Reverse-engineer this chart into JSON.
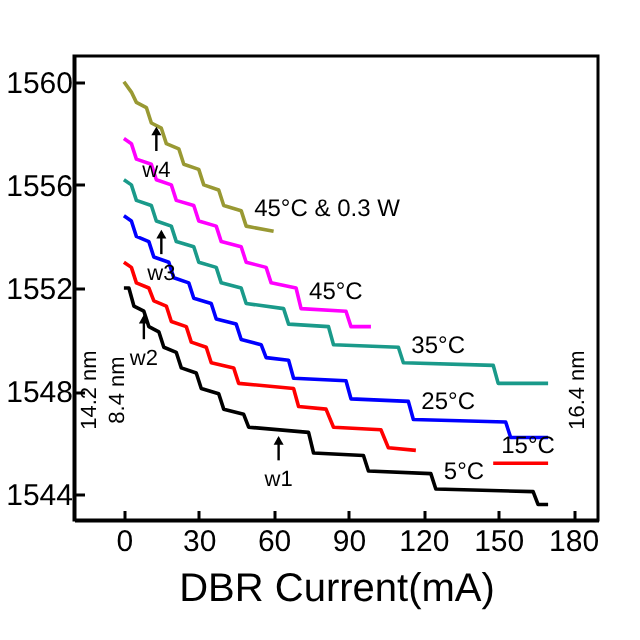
{
  "chart_data": {
    "type": "line",
    "xlabel": "DBR Current(mA)",
    "xlim": [
      -20,
      190
    ],
    "ylim": [
      1543,
      1561
    ],
    "xticks": [
      0,
      30,
      60,
      90,
      120,
      150,
      180
    ],
    "yticks": [
      1544,
      1548,
      1552,
      1556,
      1560
    ],
    "grid": false,
    "line_style": "solid",
    "marker": "none",
    "series": [
      {
        "name": "5°C",
        "color": "#000000",
        "x": [
          0,
          2,
          4,
          8,
          10,
          14,
          16,
          21,
          23,
          29,
          31,
          38,
          40,
          48,
          50,
          74,
          76,
          96,
          98,
          123,
          125,
          164,
          166,
          170
        ],
        "values": [
          1552.0,
          1552.0,
          1551.3,
          1551.1,
          1550.5,
          1550.3,
          1549.7,
          1549.5,
          1548.9,
          1548.7,
          1548.1,
          1547.9,
          1547.3,
          1547.1,
          1546.6,
          1546.4,
          1545.6,
          1545.5,
          1544.9,
          1544.8,
          1544.2,
          1544.1,
          1543.6,
          1543.6
        ]
      },
      {
        "name": "15°C",
        "color": "#ff0000",
        "x": [
          0,
          3,
          5,
          10,
          12,
          17,
          19,
          25,
          27,
          33,
          35,
          44,
          46,
          68,
          70,
          81,
          84,
          103,
          106,
          117,
          130,
          148,
          170
        ],
        "values": [
          1553.0,
          1552.8,
          1552.2,
          1552.0,
          1551.5,
          1551.3,
          1550.7,
          1550.5,
          1549.9,
          1549.7,
          1549.1,
          1548.9,
          1548.3,
          1548.1,
          1547.4,
          1547.3,
          1546.6,
          1546.5,
          1545.8,
          1545.7,
          null,
          1545.2,
          1545.2
        ]
      },
      {
        "name": "25°C",
        "color": "#0000ff",
        "x": [
          0,
          3,
          5,
          10,
          12,
          18,
          20,
          26,
          28,
          35,
          37,
          45,
          47,
          55,
          57,
          66,
          68,
          89,
          91,
          114,
          116,
          153,
          155,
          170
        ],
        "values": [
          1554.8,
          1554.6,
          1554.0,
          1553.8,
          1553.2,
          1553.0,
          1552.4,
          1552.2,
          1551.6,
          1551.4,
          1550.8,
          1550.6,
          1550.0,
          1549.8,
          1549.3,
          1549.2,
          1548.5,
          1548.4,
          1547.7,
          1547.6,
          1546.9,
          1546.8,
          1546.2,
          1546.2
        ]
      },
      {
        "name": "35°C",
        "color": "#1a9a8a",
        "x": [
          0,
          3,
          5,
          11,
          13,
          19,
          21,
          28,
          30,
          37,
          39,
          47,
          49,
          64,
          66,
          82,
          84,
          110,
          112,
          148,
          150,
          170
        ],
        "values": [
          1556.2,
          1556.0,
          1555.4,
          1555.2,
          1554.6,
          1554.4,
          1553.8,
          1553.6,
          1553.0,
          1552.8,
          1552.2,
          1552.0,
          1551.4,
          1551.2,
          1550.6,
          1550.5,
          1549.8,
          1549.7,
          1549.1,
          1549.0,
          1548.3,
          1548.3
        ]
      },
      {
        "name": "45°C",
        "color": "#ff00ff",
        "x": [
          0,
          3,
          5,
          11,
          13,
          19,
          21,
          28,
          30,
          37,
          39,
          47,
          49,
          57,
          59,
          69,
          71,
          89,
          91,
          99
        ],
        "values": [
          1557.8,
          1557.6,
          1557.0,
          1556.8,
          1556.2,
          1556.0,
          1555.4,
          1555.2,
          1554.6,
          1554.4,
          1553.8,
          1553.6,
          1553.0,
          1552.8,
          1552.2,
          1552.0,
          1551.2,
          1551.1,
          1550.5,
          1550.5
        ]
      },
      {
        "name": "45°C & 0.3 W",
        "color": "#999933",
        "x": [
          0,
          3,
          5,
          9,
          11,
          15,
          17,
          22,
          24,
          30,
          32,
          38,
          40,
          47,
          49,
          60
        ],
        "values": [
          1560.0,
          1559.6,
          1559.2,
          1559.0,
          1558.4,
          1558.2,
          1557.6,
          1557.4,
          1556.8,
          1556.6,
          1556.0,
          1555.8,
          1555.2,
          1555.0,
          1554.4,
          1554.2
        ]
      }
    ],
    "annotations": [
      {
        "text": "w1",
        "x": 62,
        "y": 1546.4
      },
      {
        "text": "w2",
        "x": 8,
        "y": 1551.1
      },
      {
        "text": "w3",
        "x": 15,
        "y": 1554.4
      },
      {
        "text": "w4",
        "x": 13,
        "y": 1558.4
      },
      "14.2 nm",
      "8.4 nm",
      "16.4 nm"
    ]
  }
}
